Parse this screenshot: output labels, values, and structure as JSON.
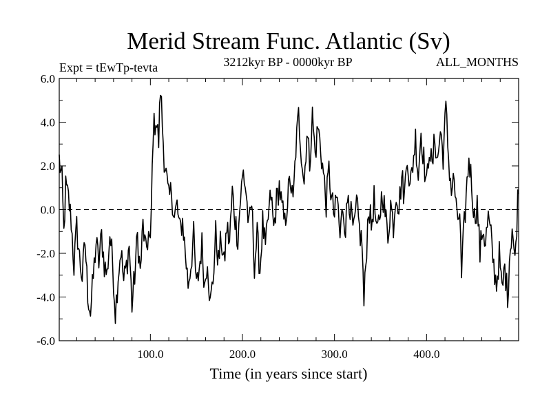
{
  "chart_data": {
    "type": "line",
    "title": "Merid Stream Func. Atlantic (Sv)",
    "subtitle_left": "Expt = tEwTp-tevta",
    "subtitle_center": "3212kyr BP - 0000kyr BP",
    "subtitle_right": "ALL_MONTHS",
    "xlabel": "Time (in years since start)",
    "ylabel": "",
    "xlim": [
      1,
      500
    ],
    "ylim": [
      -6.0,
      6.0
    ],
    "x_ticks": [
      100,
      200,
      300,
      400
    ],
    "x_tick_labels": [
      "100.0",
      "200.0",
      "300.0",
      "400.0"
    ],
    "y_ticks": [
      -6,
      -4,
      -2,
      0,
      2,
      4,
      6
    ],
    "y_tick_labels": [
      "-6.0",
      "-4.0",
      "-2.0",
      "0.0",
      "2.0",
      "4.0",
      "6.0"
    ],
    "reference_line": {
      "y": 0.0,
      "style": "dashed"
    },
    "series": [
      {
        "name": "Merid Stream Func. Atlantic",
        "color": "#000000",
        "anchors": [
          [
            1,
            2.3
          ],
          [
            4,
            1.3
          ],
          [
            6,
            -1.1
          ],
          [
            8,
            1.0
          ],
          [
            11,
            0.5
          ],
          [
            14,
            -0.5
          ],
          [
            17,
            -2.6
          ],
          [
            20,
            -0.8
          ],
          [
            23,
            -2.2
          ],
          [
            26,
            -3.1
          ],
          [
            29,
            -1.5
          ],
          [
            32,
            -3.8
          ],
          [
            35,
            -4.7
          ],
          [
            38,
            -3.1
          ],
          [
            41,
            -1.5
          ],
          [
            44,
            -2.4
          ],
          [
            47,
            -1.2
          ],
          [
            50,
            -2.5
          ],
          [
            53,
            -3.0
          ],
          [
            56,
            -1.1
          ],
          [
            59,
            -2.4
          ],
          [
            62,
            -4.7
          ],
          [
            65,
            -3.0
          ],
          [
            68,
            -1.8
          ],
          [
            71,
            -3.3
          ],
          [
            74,
            -2.6
          ],
          [
            77,
            -1.6
          ],
          [
            80,
            -4.4
          ],
          [
            83,
            -3.0
          ],
          [
            86,
            -1.2
          ],
          [
            89,
            -2.9
          ],
          [
            92,
            -0.7
          ],
          [
            95,
            -2.0
          ],
          [
            98,
            -1.1
          ],
          [
            100,
            -1.8
          ],
          [
            103,
            3.6
          ],
          [
            106,
            4.2
          ],
          [
            109,
            3.1
          ],
          [
            111,
            5.6
          ],
          [
            113,
            3.9
          ],
          [
            115,
            2.4
          ],
          [
            117,
            1.6
          ],
          [
            120,
            0.4
          ],
          [
            123,
            0.9
          ],
          [
            126,
            -0.4
          ],
          [
            129,
            0.2
          ],
          [
            132,
            -1.0
          ],
          [
            135,
            -0.5
          ],
          [
            138,
            -2.0
          ],
          [
            141,
            -3.4
          ],
          [
            144,
            -2.5
          ],
          [
            147,
            -1.2
          ],
          [
            150,
            -3.6
          ],
          [
            153,
            -2.7
          ],
          [
            156,
            -1.6
          ],
          [
            159,
            -3.5
          ],
          [
            162,
            -2.1
          ],
          [
            165,
            -4.4
          ],
          [
            168,
            -3.2
          ],
          [
            171,
            -1.1
          ],
          [
            174,
            -2.4
          ],
          [
            177,
            -1.3
          ],
          [
            180,
            -2.6
          ],
          [
            183,
            -0.8
          ],
          [
            186,
            -1.5
          ],
          [
            189,
            0.8
          ],
          [
            192,
            -0.4
          ],
          [
            195,
            -1.3
          ],
          [
            198,
            0.6
          ],
          [
            201,
            1.7
          ],
          [
            204,
            0.8
          ],
          [
            207,
            -0.9
          ],
          [
            210,
            0.3
          ],
          [
            213,
            -2.5
          ],
          [
            216,
            -1.2
          ],
          [
            219,
            -2.8
          ],
          [
            222,
            -0.6
          ],
          [
            225,
            -1.9
          ],
          [
            228,
            -0.4
          ],
          [
            231,
            0.7
          ],
          [
            234,
            -0.9
          ],
          [
            237,
            0.4
          ],
          [
            240,
            1.1
          ],
          [
            243,
            0.0
          ],
          [
            246,
            -0.7
          ],
          [
            249,
            0.5
          ],
          [
            252,
            1.4
          ],
          [
            255,
            0.2
          ],
          [
            258,
            2.8
          ],
          [
            261,
            4.3
          ],
          [
            264,
            2.7
          ],
          [
            267,
            1.2
          ],
          [
            270,
            3.6
          ],
          [
            273,
            2.2
          ],
          [
            276,
            4.3
          ],
          [
            279,
            2.5
          ],
          [
            282,
            3.8
          ],
          [
            285,
            2.8
          ],
          [
            288,
            1.6
          ],
          [
            291,
            0.3
          ],
          [
            294,
            1.8
          ],
          [
            297,
            0.4
          ],
          [
            300,
            -0.3
          ],
          [
            303,
            0.6
          ],
          [
            306,
            -1.3
          ],
          [
            309,
            0.2
          ],
          [
            312,
            -0.8
          ],
          [
            315,
            0.9
          ],
          [
            318,
            -0.3
          ],
          [
            321,
            -1.1
          ],
          [
            324,
            0.2
          ],
          [
            327,
            -0.9
          ],
          [
            330,
            -1.6
          ],
          [
            332,
            -4.4
          ],
          [
            334,
            -2.5
          ],
          [
            337,
            0.2
          ],
          [
            340,
            -0.8
          ],
          [
            343,
            0.5
          ],
          [
            346,
            -1.3
          ],
          [
            349,
            -0.3
          ],
          [
            352,
            0.9
          ],
          [
            355,
            -0.2
          ],
          [
            358,
            -1.2
          ],
          [
            361,
            0.3
          ],
          [
            364,
            -0.7
          ],
          [
            367,
            0.9
          ],
          [
            370,
            0.1
          ],
          [
            373,
            1.5
          ],
          [
            376,
            0.6
          ],
          [
            379,
            2.7
          ],
          [
            382,
            0.9
          ],
          [
            385,
            2.1
          ],
          [
            388,
            3.3
          ],
          [
            391,
            1.6
          ],
          [
            394,
            3.6
          ],
          [
            397,
            2.3
          ],
          [
            400,
            1.0
          ],
          [
            403,
            3.0
          ],
          [
            406,
            1.8
          ],
          [
            409,
            3.3
          ],
          [
            412,
            2.2
          ],
          [
            415,
            3.6
          ],
          [
            418,
            2.5
          ],
          [
            421,
            4.6
          ],
          [
            424,
            2.3
          ],
          [
            427,
            0.9
          ],
          [
            430,
            1.4
          ],
          [
            433,
            -0.6
          ],
          [
            436,
            -0.1
          ],
          [
            438,
            -3.2
          ],
          [
            440,
            -1.4
          ],
          [
            443,
            0.6
          ],
          [
            446,
            2.4
          ],
          [
            449,
            1.2
          ],
          [
            452,
            -0.4
          ],
          [
            455,
            0.3
          ],
          [
            458,
            -2.0
          ],
          [
            461,
            -0.8
          ],
          [
            464,
            -1.5
          ],
          [
            467,
            -0.4
          ],
          [
            470,
            -1.3
          ],
          [
            473,
            -2.6
          ],
          [
            476,
            -3.4
          ],
          [
            479,
            -2.1
          ],
          [
            482,
            -3.8
          ],
          [
            485,
            -2.6
          ],
          [
            488,
            -4.0
          ],
          [
            490,
            -2.2
          ],
          [
            493,
            -0.7
          ],
          [
            496,
            -2.5
          ],
          [
            500,
            1.4
          ]
        ]
      }
    ]
  }
}
